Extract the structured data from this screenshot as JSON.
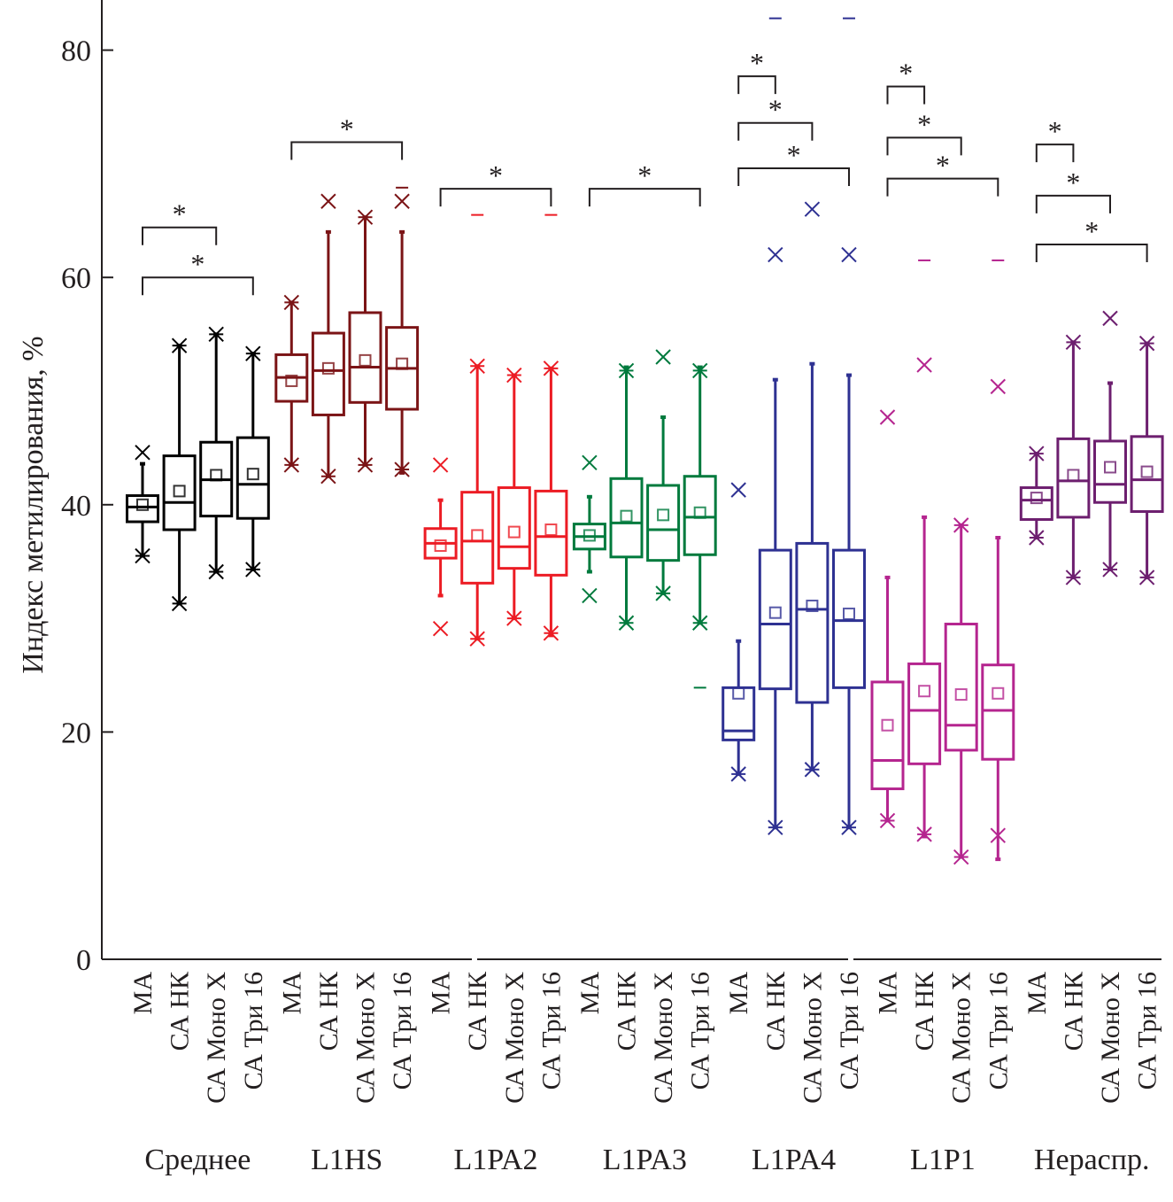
{
  "chart_data": {
    "type": "boxplot",
    "title": "",
    "xlabel": "",
    "ylabel": "Индекс метилирования, %",
    "ylim": [
      0,
      84
    ],
    "yticks": [
      0,
      20,
      40,
      60,
      80
    ],
    "grid": false,
    "legend": "none",
    "subcategories": [
      "МА",
      "СА НК",
      "СА Моно X",
      "СА Три 16"
    ],
    "groups": [
      {
        "name": "Среднее",
        "color": "#000000",
        "boxes": [
          {
            "label": "МА",
            "q1": 38.5,
            "median": 39.8,
            "q3": 40.8,
            "mean": 40.0,
            "whisker_low": 35.5,
            "whisker_high": 43.6,
            "outliers": [
              44.6,
              35.5
            ]
          },
          {
            "label": "СА НК",
            "q1": 37.8,
            "median": 40.2,
            "q3": 44.3,
            "mean": 41.2,
            "whisker_low": 31.3,
            "whisker_high": 54.0,
            "outliers": [
              54.0,
              31.3
            ]
          },
          {
            "label": "СА Моно X",
            "q1": 39.0,
            "median": 42.2,
            "q3": 45.5,
            "mean": 42.6,
            "whisker_low": 34.1,
            "whisker_high": 55.0,
            "outliers": [
              55.0,
              34.1
            ]
          },
          {
            "label": "СА Три 16",
            "q1": 38.8,
            "median": 41.8,
            "q3": 45.9,
            "mean": 42.7,
            "whisker_low": 34.3,
            "whisker_high": 53.3,
            "outliers": [
              53.3,
              34.3
            ]
          }
        ],
        "significance": [
          {
            "from": "МА",
            "to": "СА Моно X",
            "level": 64.4,
            "label": "*"
          },
          {
            "from": "МА",
            "to": "СА Три 16",
            "level": 60.0,
            "label": "*"
          }
        ]
      },
      {
        "name": "L1HS",
        "color": "#7b1416",
        "boxes": [
          {
            "label": "МА",
            "q1": 49.1,
            "median": 51.2,
            "q3": 53.2,
            "mean": 50.9,
            "whisker_low": 43.5,
            "whisker_high": 57.8,
            "outliers": [
              57.8,
              43.5
            ]
          },
          {
            "label": "СА НК",
            "q1": 47.9,
            "median": 51.8,
            "q3": 55.1,
            "mean": 52.0,
            "whisker_low": 42.5,
            "whisker_high": 64.0,
            "outliers": [
              66.7,
              42.5
            ]
          },
          {
            "label": "СА Моно X",
            "q1": 49.0,
            "median": 52.1,
            "q3": 56.9,
            "mean": 52.7,
            "whisker_low": 43.5,
            "whisker_high": 65.3,
            "outliers": [
              65.3,
              43.5
            ]
          },
          {
            "label": "СА Три 16",
            "q1": 48.4,
            "median": 52.0,
            "q3": 55.6,
            "mean": 52.4,
            "whisker_low": 42.8,
            "whisker_high": 64.0,
            "outliers": [
              66.7,
              43.1
            ],
            "extremes": [
              67.9
            ]
          }
        ],
        "significance": [
          {
            "from": "МА",
            "to": "СА Три 16",
            "level": 71.9,
            "label": "*"
          }
        ]
      },
      {
        "name": "L1PA2",
        "color": "#ec1c24",
        "boxes": [
          {
            "label": "МА",
            "q1": 35.3,
            "median": 36.6,
            "q3": 37.9,
            "mean": 36.4,
            "whisker_low": 32.0,
            "whisker_high": 40.4,
            "outliers": [
              43.5,
              29.1
            ]
          },
          {
            "label": "СА НК",
            "q1": 33.1,
            "median": 36.8,
            "q3": 41.1,
            "mean": 37.3,
            "whisker_low": 28.2,
            "whisker_high": 52.2,
            "outliers": [
              52.2,
              28.2
            ],
            "extremes": [
              65.5
            ]
          },
          {
            "label": "СА Моно X",
            "q1": 34.4,
            "median": 36.3,
            "q3": 41.5,
            "mean": 37.6,
            "whisker_low": 30.0,
            "whisker_high": 51.4,
            "outliers": [
              51.4,
              30.0
            ]
          },
          {
            "label": "СА Три 16",
            "q1": 33.8,
            "median": 37.2,
            "q3": 41.2,
            "mean": 37.8,
            "whisker_low": 28.5,
            "whisker_high": 52.0,
            "outliers": [
              52.0,
              28.7
            ],
            "extremes": [
              65.5
            ]
          }
        ],
        "significance": [
          {
            "from": "МА",
            "to": "СА Три 16",
            "level": 67.8,
            "label": "*"
          }
        ]
      },
      {
        "name": "L1PA3",
        "color": "#007a3d",
        "boxes": [
          {
            "label": "МА",
            "q1": 36.1,
            "median": 37.2,
            "q3": 38.3,
            "mean": 37.3,
            "whisker_low": 34.1,
            "whisker_high": 40.7,
            "outliers": [
              43.7,
              32.0
            ]
          },
          {
            "label": "СА НК",
            "q1": 35.4,
            "median": 38.4,
            "q3": 42.3,
            "mean": 39.0,
            "whisker_low": 29.6,
            "whisker_high": 52.1,
            "outliers": [
              51.8,
              29.6
            ]
          },
          {
            "label": "СА Моно X",
            "q1": 35.1,
            "median": 37.8,
            "q3": 41.7,
            "mean": 39.1,
            "whisker_low": 32.2,
            "whisker_high": 47.7,
            "outliers": [
              53.0,
              32.2
            ]
          },
          {
            "label": "СА Три 16",
            "q1": 35.6,
            "median": 38.9,
            "q3": 42.5,
            "mean": 39.3,
            "whisker_low": 29.6,
            "whisker_high": 52.1,
            "outliers": [
              51.8,
              29.6
            ],
            "extremes": [
              23.9
            ]
          }
        ],
        "significance": [
          {
            "from": "МА",
            "to": "СА Три 16",
            "level": 67.8,
            "label": "*"
          }
        ]
      },
      {
        "name": "L1PA4",
        "color": "#2e3192",
        "boxes": [
          {
            "label": "МА",
            "q1": 19.3,
            "median": 20.1,
            "q3": 23.9,
            "mean": 23.4,
            "whisker_low": 16.3,
            "whisker_high": 28.0,
            "outliers": [
              41.3,
              16.3
            ]
          },
          {
            "label": "СА НК",
            "q1": 23.8,
            "median": 29.5,
            "q3": 36.0,
            "mean": 30.5,
            "whisker_low": 11.6,
            "whisker_high": 51.0,
            "outliers": [
              62.0,
              11.6
            ],
            "extremes": [
              82.8
            ]
          },
          {
            "label": "СА Моно X",
            "q1": 22.6,
            "median": 30.8,
            "q3": 36.6,
            "mean": 31.1,
            "whisker_low": 16.7,
            "whisker_high": 52.4,
            "outliers": [
              66.0,
              16.7
            ]
          },
          {
            "label": "СА Три 16",
            "q1": 23.9,
            "median": 29.8,
            "q3": 36.0,
            "mean": 30.4,
            "whisker_low": 11.6,
            "whisker_high": 51.4,
            "outliers": [
              62.0,
              11.6
            ],
            "extremes": [
              82.8
            ]
          }
        ],
        "significance": [
          {
            "from": "МА",
            "to": "СА НК",
            "level": 77.7,
            "label": "*"
          },
          {
            "from": "МА",
            "to": "СА Моно X",
            "level": 73.6,
            "label": "*"
          },
          {
            "from": "МА",
            "to": "СА Три 16",
            "level": 69.6,
            "label": "*"
          }
        ]
      },
      {
        "name": "L1P1",
        "color": "#b5258f",
        "boxes": [
          {
            "label": "МА",
            "q1": 15.0,
            "median": 17.5,
            "q3": 24.4,
            "mean": 20.6,
            "whisker_low": 12.2,
            "whisker_high": 33.6,
            "outliers": [
              47.7,
              12.2
            ]
          },
          {
            "label": "СА НК",
            "q1": 17.2,
            "median": 21.9,
            "q3": 26.0,
            "mean": 23.6,
            "whisker_low": 10.8,
            "whisker_high": 38.9,
            "outliers": [
              52.3,
              11.0
            ],
            "extremes": [
              61.5
            ]
          },
          {
            "label": "СА Моно X",
            "q1": 18.4,
            "median": 20.6,
            "q3": 29.5,
            "mean": 23.3,
            "whisker_low": 9.0,
            "whisker_high": 38.2,
            "outliers": [
              38.2,
              9.0
            ]
          },
          {
            "label": "СА Три 16",
            "q1": 17.6,
            "median": 21.9,
            "q3": 25.9,
            "mean": 23.4,
            "whisker_low": 8.8,
            "whisker_high": 37.1,
            "outliers": [
              50.4,
              10.9
            ],
            "extremes": [
              61.5
            ]
          }
        ],
        "significance": [
          {
            "from": "МА",
            "to": "СА НК",
            "level": 76.8,
            "label": "*"
          },
          {
            "from": "МА",
            "to": "СА Моно X",
            "level": 72.3,
            "label": "*"
          },
          {
            "from": "МА",
            "to": "СА Три 16",
            "level": 68.7,
            "label": "*"
          }
        ]
      },
      {
        "name": "Нераспр.",
        "color": "#6d1f6f",
        "boxes": [
          {
            "label": "МА",
            "q1": 38.7,
            "median": 40.4,
            "q3": 41.5,
            "mean": 40.6,
            "whisker_low": 37.1,
            "whisker_high": 44.5,
            "outliers": [
              44.5,
              37.1
            ]
          },
          {
            "label": "СА НК",
            "q1": 38.9,
            "median": 42.1,
            "q3": 45.8,
            "mean": 42.6,
            "whisker_low": 33.6,
            "whisker_high": 54.3,
            "outliers": [
              54.3,
              33.6
            ]
          },
          {
            "label": "СА Моно X",
            "q1": 40.2,
            "median": 41.8,
            "q3": 45.6,
            "mean": 43.3,
            "whisker_low": 34.3,
            "whisker_high": 50.7,
            "outliers": [
              56.4,
              34.3
            ]
          },
          {
            "label": "СА Три 16",
            "q1": 39.4,
            "median": 42.2,
            "q3": 46.0,
            "mean": 42.9,
            "whisker_low": 33.6,
            "whisker_high": 54.2,
            "outliers": [
              54.2,
              33.6
            ]
          }
        ],
        "significance": [
          {
            "from": "МА",
            "to": "СА НК",
            "level": 71.7,
            "label": "*"
          },
          {
            "from": "МА",
            "to": "СА Моно X",
            "level": 67.2,
            "label": "*"
          },
          {
            "from": "МА",
            "to": "СА Три 16",
            "level": 62.9,
            "label": "*"
          }
        ]
      }
    ]
  }
}
